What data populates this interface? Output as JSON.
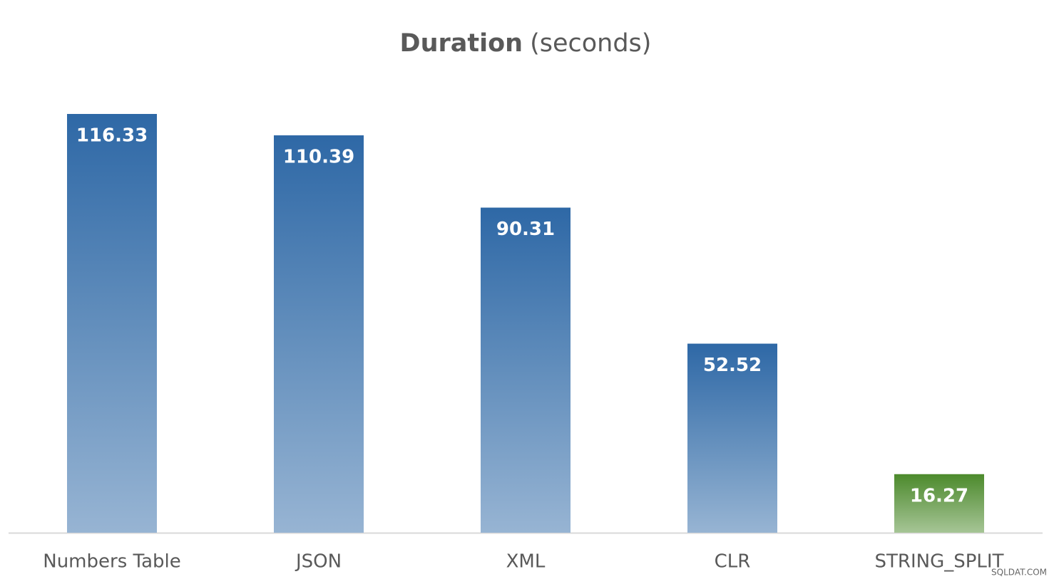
{
  "chart_data": {
    "type": "bar",
    "title": "Duration",
    "title_unit": "(seconds)",
    "categories": [
      "Numbers Table",
      "JSON",
      "XML",
      "CLR",
      "STRING_SPLIT"
    ],
    "values": [
      116.33,
      110.39,
      90.31,
      52.52,
      16.27
    ],
    "colors": [
      "#2e68a6",
      "#2e68a6",
      "#2e68a6",
      "#2e68a6",
      "#4c8a2c"
    ],
    "watermark": "SQLDAT.COM"
  }
}
